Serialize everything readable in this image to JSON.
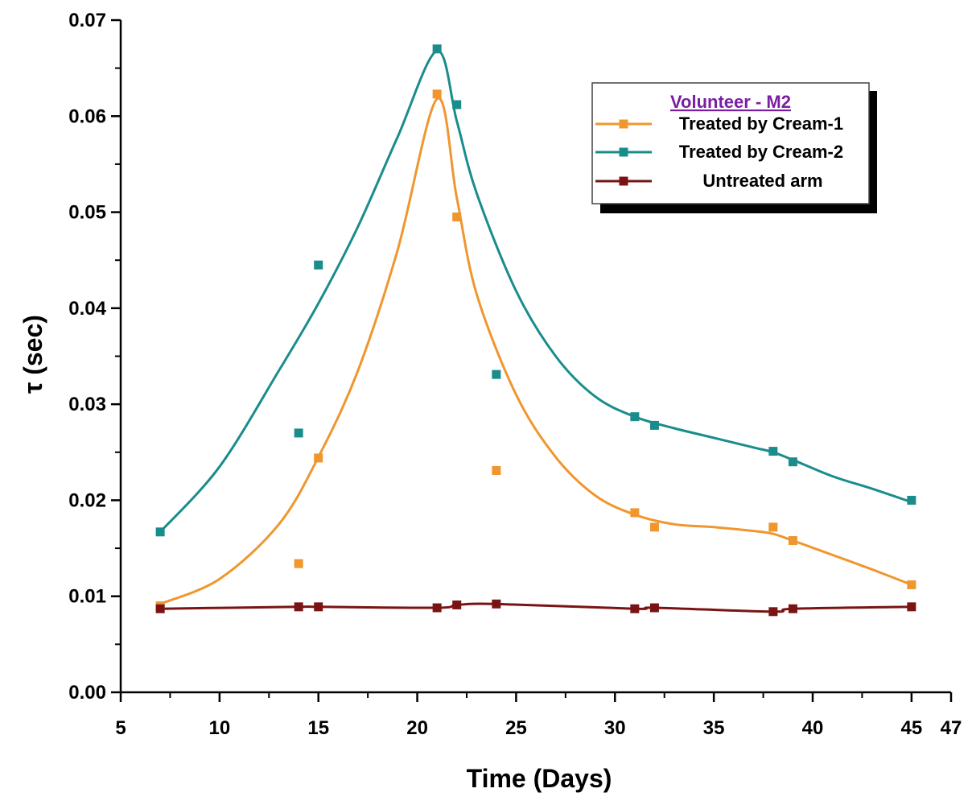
{
  "chart_data": {
    "type": "line",
    "title": "",
    "xlabel": "Time (Days)",
    "ylabel": "τ (sec)",
    "xlim": [
      5,
      47
    ],
    "ylim": [
      0,
      0.07
    ],
    "x_ticks": [
      5,
      10,
      15,
      20,
      25,
      30,
      35,
      40,
      45,
      47
    ],
    "x_tick_labels": [
      "5",
      "10",
      "15",
      "20",
      "25",
      "30",
      "35",
      "40",
      "45",
      "47"
    ],
    "y_ticks": [
      0,
      0.01,
      0.02,
      0.03,
      0.04,
      0.05,
      0.06,
      0.07
    ],
    "y_tick_labels": [
      "0.00",
      "0.01",
      "0.02",
      "0.03",
      "0.04",
      "0.05",
      "0.06",
      "0.07"
    ],
    "grid": false,
    "legend": {
      "title": "Volunteer - M2",
      "position": "top-right"
    },
    "series": [
      {
        "name": "Treated by Cream-1",
        "color": "#f0962e",
        "x": [
          7,
          14,
          15,
          21,
          22,
          24,
          31,
          32,
          38,
          39,
          45
        ],
        "y": [
          0.009,
          0.0134,
          0.0244,
          0.0623,
          0.0495,
          0.0231,
          0.0187,
          0.0172,
          0.0172,
          0.0158,
          0.0112
        ],
        "curve_x": [
          7,
          10,
          13,
          15,
          17,
          19,
          21,
          22,
          23,
          25,
          27,
          29,
          31,
          33,
          35,
          37,
          38,
          39,
          41,
          43,
          45
        ],
        "curve_y": [
          0.0092,
          0.0118,
          0.0175,
          0.0245,
          0.0335,
          0.046,
          0.0618,
          0.0515,
          0.0415,
          0.031,
          0.0245,
          0.0205,
          0.0185,
          0.0175,
          0.0172,
          0.0168,
          0.0165,
          0.0158,
          0.0143,
          0.0128,
          0.0112
        ]
      },
      {
        "name": "Treated by Cream-2",
        "color": "#1a8c8c",
        "x": [
          7,
          14,
          15,
          21,
          22,
          24,
          31,
          32,
          38,
          39,
          45
        ],
        "y": [
          0.0167,
          0.027,
          0.0445,
          0.067,
          0.0612,
          0.0331,
          0.0287,
          0.0278,
          0.0251,
          0.024,
          0.02
        ],
        "curve_x": [
          7,
          10,
          13,
          15,
          17,
          19,
          21,
          22,
          23,
          25,
          27,
          29,
          31,
          33,
          35,
          37,
          38,
          39,
          41,
          43,
          45
        ],
        "curve_y": [
          0.0167,
          0.0235,
          0.0335,
          0.0405,
          0.0485,
          0.0578,
          0.0668,
          0.0595,
          0.052,
          0.0418,
          0.035,
          0.0308,
          0.0287,
          0.0275,
          0.0265,
          0.0255,
          0.025,
          0.0242,
          0.0225,
          0.0212,
          0.0198
        ]
      },
      {
        "name": "Untreated arm",
        "color": "#7a1414",
        "x": [
          7,
          14,
          15,
          21,
          22,
          24,
          31,
          32,
          38,
          39,
          45
        ],
        "y": [
          0.0087,
          0.0089,
          0.0089,
          0.0088,
          0.0091,
          0.0092,
          0.0087,
          0.0088,
          0.0084,
          0.0087,
          0.0089
        ],
        "curve_x": [
          7,
          14,
          15,
          21,
          22,
          24,
          31,
          32,
          38,
          39,
          45
        ],
        "curve_y": [
          0.0087,
          0.0089,
          0.0089,
          0.0088,
          0.0091,
          0.0092,
          0.0087,
          0.0088,
          0.0084,
          0.0087,
          0.0089
        ]
      }
    ]
  }
}
